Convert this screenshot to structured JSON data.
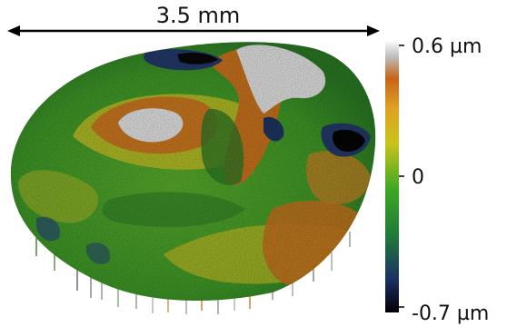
{
  "scale_bar": {
    "label": "3.5 mm"
  },
  "colorbar": {
    "max_label": "0.6 µm",
    "mid_label": "0",
    "min_label": "-0.7 µm",
    "min_value": -0.7,
    "max_value": 0.6,
    "unit": "µm",
    "stops": [
      "#000000",
      "#1c2f66",
      "#1f7a3a",
      "#3aa822",
      "#c8c41a",
      "#e0a023",
      "#c66418",
      "#bfbfbf",
      "#ffffff"
    ]
  },
  "surface": {
    "colors": {
      "green": "#49a42a",
      "dark_green": "#2f7a26",
      "yellow": "#c6c325",
      "orange": "#cf7a1f",
      "white": "#e8e8e8",
      "blue": "#233a6b",
      "black": "#080808"
    }
  }
}
